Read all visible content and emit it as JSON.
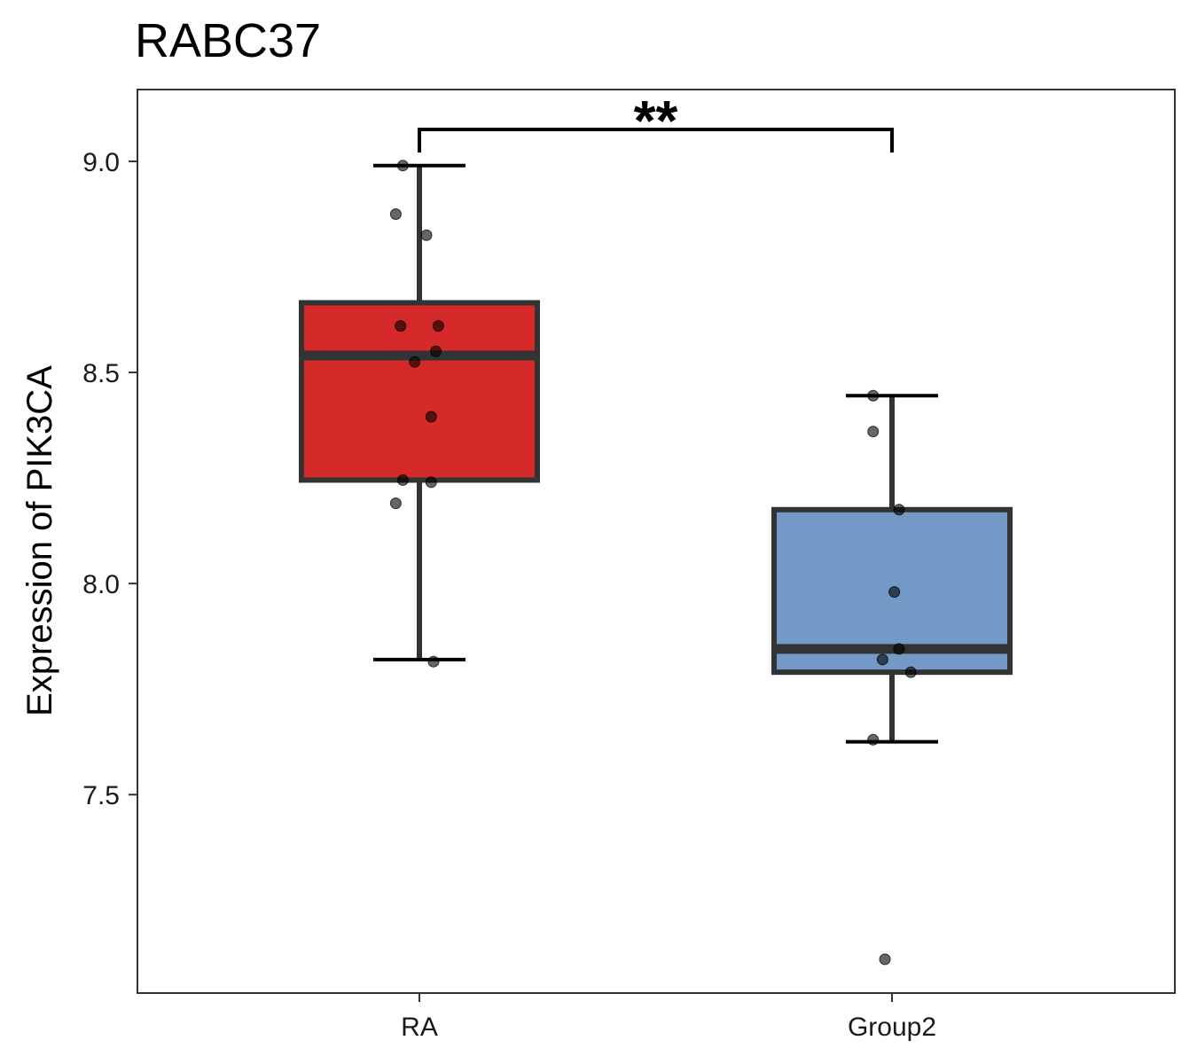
{
  "chart_data": {
    "type": "box",
    "title": "RABC37",
    "xlabel": "",
    "ylabel": "Expression of PIK3CA",
    "ylim": [
      7.03,
      9.17
    ],
    "yticks": [
      "7.5",
      "8.0",
      "8.5",
      "9.0"
    ],
    "ytick_values": [
      7.5,
      8.0,
      8.5,
      9.0
    ],
    "categories": [
      "RA",
      "Group2"
    ],
    "grid": false,
    "significance": {
      "label": "**",
      "between": [
        "RA",
        "Group2"
      ]
    },
    "groups": [
      {
        "name": "RA",
        "color": "#d62a2a",
        "whisker_low": 7.82,
        "q1": 8.245,
        "median": 8.54,
        "q3": 8.665,
        "whisker_high": 8.99,
        "points": [
          {
            "v": 8.99,
            "j": -0.07
          },
          {
            "v": 8.875,
            "j": -0.1
          },
          {
            "v": 8.825,
            "j": 0.03
          },
          {
            "v": 8.61,
            "j": -0.08
          },
          {
            "v": 8.61,
            "j": 0.08
          },
          {
            "v": 8.55,
            "j": 0.07
          },
          {
            "v": 8.525,
            "j": -0.02
          },
          {
            "v": 8.395,
            "j": 0.05
          },
          {
            "v": 8.245,
            "j": -0.07
          },
          {
            "v": 8.24,
            "j": 0.05
          },
          {
            "v": 8.19,
            "j": -0.1
          },
          {
            "v": 7.815,
            "j": 0.06
          }
        ]
      },
      {
        "name": "Group2",
        "color": "#7399c6",
        "whisker_low": 7.625,
        "q1": 7.79,
        "median": 7.845,
        "q3": 8.175,
        "whisker_high": 8.445,
        "points": [
          {
            "v": 8.445,
            "j": -0.08
          },
          {
            "v": 8.36,
            "j": -0.08
          },
          {
            "v": 8.175,
            "j": 0.03
          },
          {
            "v": 7.98,
            "j": 0.01
          },
          {
            "v": 7.845,
            "j": 0.03
          },
          {
            "v": 7.82,
            "j": -0.04
          },
          {
            "v": 7.79,
            "j": 0.08
          },
          {
            "v": 7.63,
            "j": -0.08
          },
          {
            "v": 7.11,
            "j": -0.03
          }
        ]
      }
    ]
  }
}
